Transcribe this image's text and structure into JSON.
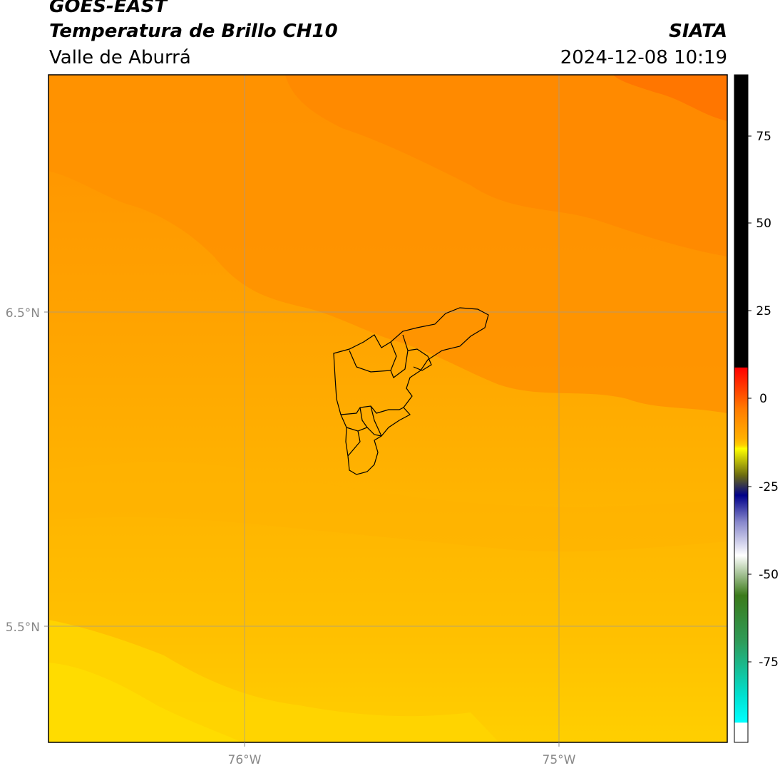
{
  "header": {
    "satellite": "GOES-EAST",
    "product": "Temperatura de Brillo CH10",
    "region": "Valle de Aburrá",
    "org": "SIATA",
    "datetime": "2024-12-08 10:19"
  },
  "map": {
    "lat_labels": [
      "6.5°N",
      "5.5°N"
    ],
    "lon_labels": [
      "76°W",
      "75°W"
    ],
    "background_colors": [
      "#ff7a00",
      "#ff8c00",
      "#ff9c00",
      "#ffac00",
      "#ffbb00",
      "#ffc700",
      "#ffd800"
    ]
  },
  "colorbar": {
    "ticks": [
      "75",
      "50",
      "25",
      "0",
      "-25",
      "-50",
      "-75"
    ],
    "colors": [
      "#000000",
      "#ff0000",
      "#ff8c00",
      "#ffff00",
      "#000080",
      "#ffffff",
      "#2e8b57",
      "#00ffff",
      "#ffffff"
    ]
  }
}
